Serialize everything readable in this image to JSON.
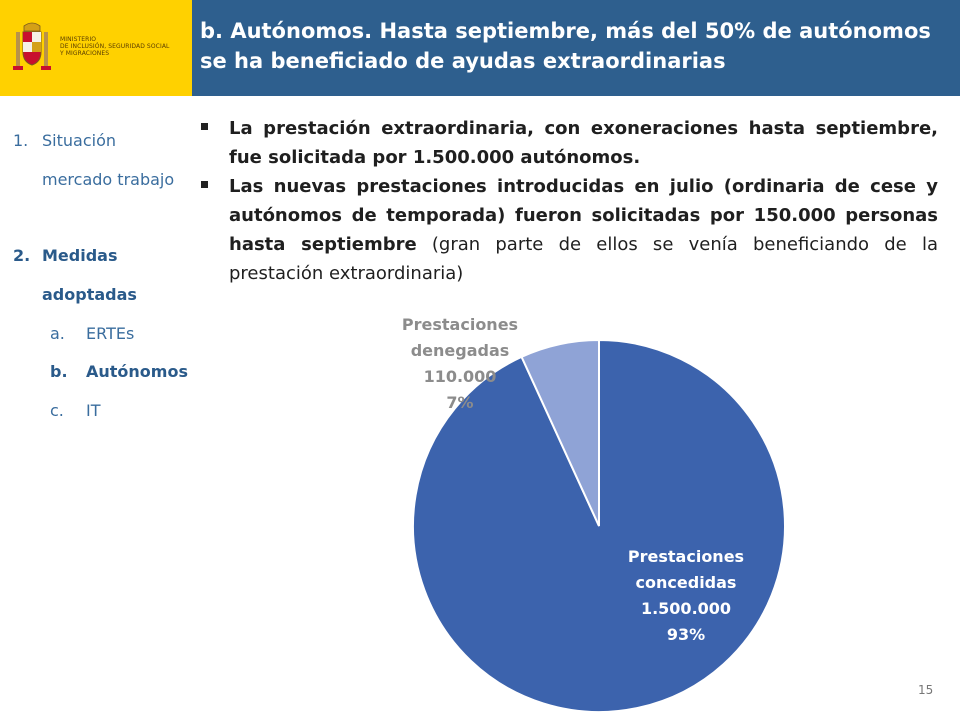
{
  "header": {
    "ministry_lines": [
      "MINISTERIO",
      "DE INCLUSIÓN, SEGURIDAD SOCIAL",
      "Y MIGRACIONES"
    ],
    "title": "b. Autónomos. Hasta septiembre, más del 50% de autónomos se ha beneficiado de ayudas extraordinarias"
  },
  "nav": {
    "item1_num": "1.",
    "item1_line1": "Situación",
    "item1_line2": "mercado trabajo",
    "item2_num": "2.",
    "item2_line1": "Medidas",
    "item2_line2": "adoptadas",
    "sub_a_letter": "a.",
    "sub_a_label": "ERTEs",
    "sub_b_letter": "b.",
    "sub_b_label": "Autónomos",
    "sub_c_letter": "c.",
    "sub_c_label": "IT"
  },
  "bullets": {
    "b1_bold": "La prestación extraordinaria, con exoneraciones hasta septiembre, fue solicitada por 1.500.000 autónomos.",
    "b2_bold": "Las nuevas prestaciones introducidas en julio (ordinaria de cese y autónomos de temporada) fueron solicitadas por 150.000 personas hasta septiembre",
    "b2_normal": " (gran parte de ellos se venía beneficiando de la prestación extraordinaria)"
  },
  "chart_data": {
    "type": "pie",
    "slices": [
      {
        "label_lines": [
          "Prestaciones",
          "concedidas",
          "1.500.000",
          "93%"
        ],
        "value": 1500000,
        "percent": 93,
        "color": "#3c63ad"
      },
      {
        "label_lines": [
          "Prestaciones",
          "denegadas",
          "110.000",
          "7%"
        ],
        "value": 110000,
        "percent": 7,
        "color": "#8fa3d6"
      }
    ]
  },
  "footer": {
    "page_number": "15"
  }
}
